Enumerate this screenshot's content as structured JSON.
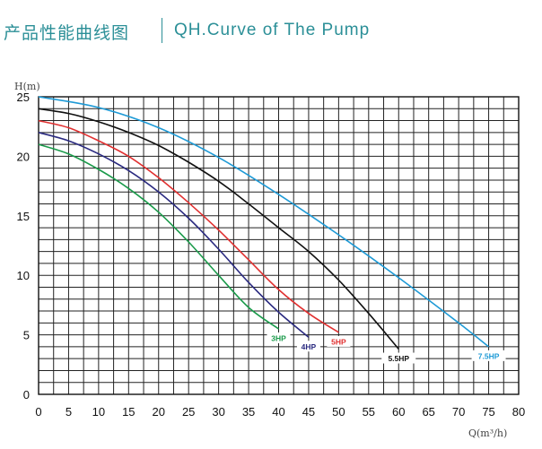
{
  "header": {
    "title_cn": "产品性能曲线图",
    "title_en": "QH.Curve of The Pump"
  },
  "chart_data": {
    "type": "line",
    "xlabel": "Q(m³/h)",
    "ylabel": "H(m)",
    "xlim": [
      0,
      80
    ],
    "ylim": [
      0,
      25
    ],
    "x_ticks": [
      0,
      5,
      10,
      15,
      20,
      25,
      30,
      35,
      40,
      45,
      50,
      55,
      60,
      65,
      70,
      75,
      80
    ],
    "y_ticks": [
      0,
      5,
      10,
      15,
      20,
      25
    ],
    "grid": true,
    "series": [
      {
        "name": "3HP",
        "color": "#1a9a4a",
        "x": [
          0,
          5,
          10,
          15,
          20,
          25,
          30,
          35,
          40
        ],
        "y": [
          21,
          20.2,
          18.9,
          17.3,
          15.3,
          12.8,
          10,
          7.3,
          5.5
        ]
      },
      {
        "name": "4HP",
        "color": "#2a2a80",
        "x": [
          0,
          5,
          10,
          15,
          20,
          25,
          30,
          35,
          40,
          45
        ],
        "y": [
          22,
          21.3,
          20.2,
          18.8,
          17,
          14.8,
          12.2,
          9.4,
          6.9,
          4.8
        ]
      },
      {
        "name": "5HP",
        "color": "#e03030",
        "x": [
          0,
          5,
          10,
          15,
          20,
          25,
          30,
          35,
          40,
          45,
          50
        ],
        "y": [
          23,
          22.4,
          21.3,
          20,
          18.2,
          16.1,
          13.8,
          11.3,
          8.8,
          6.8,
          5.2
        ]
      },
      {
        "name": "5.5HP",
        "color": "#111111",
        "x": [
          0,
          5,
          10,
          15,
          20,
          25,
          30,
          35,
          40,
          45,
          50,
          55,
          60
        ],
        "y": [
          24,
          23.6,
          22.9,
          22,
          20.9,
          19.5,
          17.9,
          16,
          14,
          12,
          9.6,
          6.8,
          3.8
        ]
      },
      {
        "name": "7.5HP",
        "color": "#1e9ad6",
        "x": [
          0,
          10,
          20,
          30,
          40,
          50,
          60,
          70,
          75
        ],
        "y": [
          25,
          24.1,
          22.4,
          19.9,
          16.8,
          13.4,
          9.8,
          6,
          4
        ]
      }
    ]
  }
}
